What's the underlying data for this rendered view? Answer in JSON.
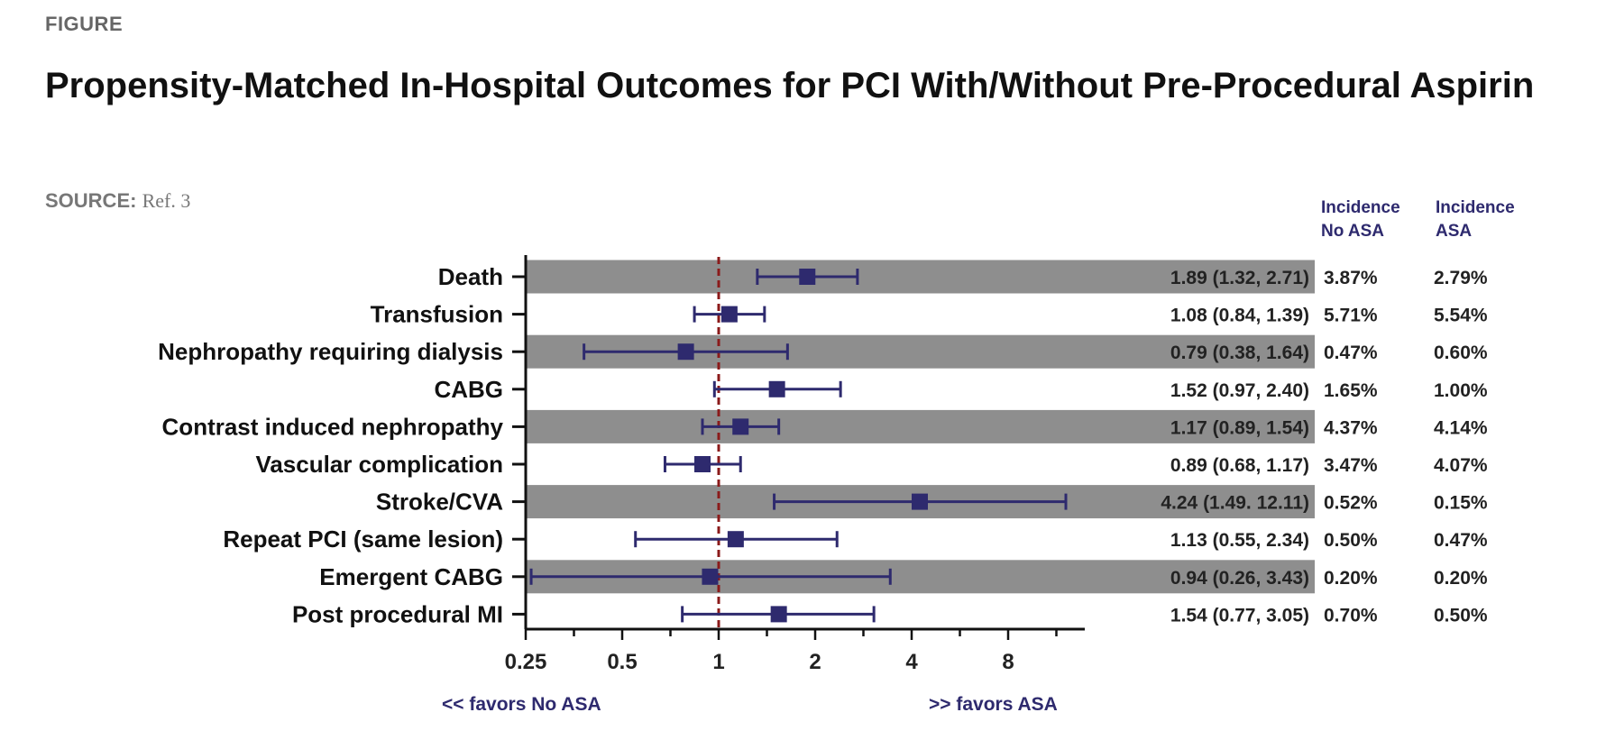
{
  "header": {
    "kicker": "FIGURE",
    "title": "Propensity-Matched In-Hospital Outcomes for PCI With/Without Pre-Procedural Aspirin",
    "source_label": "SOURCE:",
    "source_text": "Ref. 3"
  },
  "colors": {
    "marker": "#2e2a6e",
    "band": "#8e8e8e",
    "reference_line": "#8b1a1a",
    "header_text": "#2e2a6e"
  },
  "chart_data": {
    "type": "forest",
    "x_scale": "log2",
    "xlim": [
      0.25,
      14
    ],
    "x_ticks": [
      "0.25",
      "0.5",
      "1",
      "2",
      "4",
      "8"
    ],
    "x_tick_values": [
      0.25,
      0.5,
      1,
      2,
      4,
      8
    ],
    "reference_value": 1,
    "left_annotation": "<< favors No ASA",
    "right_annotation": ">> favors ASA",
    "column_headers": {
      "no_asa": [
        "Incidence",
        "No ASA"
      ],
      "asa": [
        "Incidence",
        "ASA"
      ]
    },
    "rows": [
      {
        "label": "Death",
        "or": 1.89,
        "lo": 1.32,
        "hi": 2.71,
        "or_text": "1.89 (1.32, 2.71)",
        "no_asa": "3.87%",
        "asa": "2.79%"
      },
      {
        "label": "Transfusion",
        "or": 1.08,
        "lo": 0.84,
        "hi": 1.39,
        "or_text": "1.08 (0.84, 1.39)",
        "no_asa": "5.71%",
        "asa": "5.54%"
      },
      {
        "label": "Nephropathy requiring dialysis",
        "or": 0.79,
        "lo": 0.38,
        "hi": 1.64,
        "or_text": "0.79 (0.38, 1.64)",
        "no_asa": "0.47%",
        "asa": "0.60%"
      },
      {
        "label": "CABG",
        "or": 1.52,
        "lo": 0.97,
        "hi": 2.4,
        "or_text": "1.52 (0.97, 2.40)",
        "no_asa": "1.65%",
        "asa": "1.00%"
      },
      {
        "label": "Contrast induced nephropathy",
        "or": 1.17,
        "lo": 0.89,
        "hi": 1.54,
        "or_text": "1.17 (0.89, 1.54)",
        "no_asa": "4.37%",
        "asa": "4.14%"
      },
      {
        "label": "Vascular complication",
        "or": 0.89,
        "lo": 0.68,
        "hi": 1.17,
        "or_text": "0.89 (0.68, 1.17)",
        "no_asa": "3.47%",
        "asa": "4.07%"
      },
      {
        "label": "Stroke/CVA",
        "or": 4.24,
        "lo": 1.49,
        "hi": 12.11,
        "or_text": "4.24 (1.49. 12.11)",
        "no_asa": "0.52%",
        "asa": "0.15%"
      },
      {
        "label": "Repeat PCI (same lesion)",
        "or": 1.13,
        "lo": 0.55,
        "hi": 2.34,
        "or_text": "1.13 (0.55, 2.34)",
        "no_asa": "0.50%",
        "asa": "0.47%"
      },
      {
        "label": "Emergent CABG",
        "or": 0.94,
        "lo": 0.26,
        "hi": 3.43,
        "or_text": "0.94 (0.26, 3.43)",
        "no_asa": "0.20%",
        "asa": "0.20%"
      },
      {
        "label": "Post procedural MI",
        "or": 1.54,
        "lo": 0.77,
        "hi": 3.05,
        "or_text": "1.54 (0.77, 3.05)",
        "no_asa": "0.70%",
        "asa": "0.50%"
      }
    ]
  }
}
